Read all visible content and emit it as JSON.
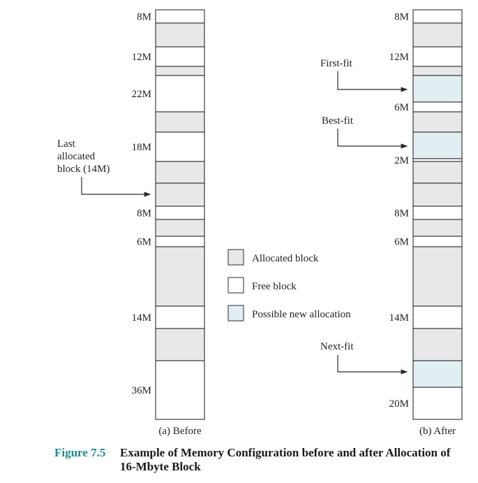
{
  "colors": {
    "allocated": "#e8e8ea",
    "free": "#ffffff",
    "possible": "#e1eef2",
    "border": "#2a2a2a",
    "caption_accent": "#1f8a8a"
  },
  "before": {
    "label": "(a) Before",
    "blocks": [
      {
        "type": "free",
        "size": "8M"
      },
      {
        "type": "allocated"
      },
      {
        "type": "free",
        "size": "12M"
      },
      {
        "type": "allocated"
      },
      {
        "type": "free",
        "size": "22M"
      },
      {
        "type": "allocated"
      },
      {
        "type": "free",
        "size": "18M"
      },
      {
        "type": "allocated"
      },
      {
        "type": "allocated"
      },
      {
        "type": "free",
        "size": "8M"
      },
      {
        "type": "allocated"
      },
      {
        "type": "free",
        "size": "6M"
      },
      {
        "type": "allocated"
      },
      {
        "type": "free",
        "size": "14M"
      },
      {
        "type": "allocated"
      },
      {
        "type": "free",
        "size": "36M"
      }
    ],
    "annotation": {
      "lines": [
        "Last",
        "allocated",
        "block (14M)"
      ]
    }
  },
  "after": {
    "label": "(b) After",
    "blocks": [
      {
        "type": "free",
        "size": "8M"
      },
      {
        "type": "allocated"
      },
      {
        "type": "free",
        "size": "12M"
      },
      {
        "type": "allocated"
      },
      {
        "type": "possible"
      },
      {
        "type": "free",
        "size": "6M"
      },
      {
        "type": "allocated"
      },
      {
        "type": "possible"
      },
      {
        "type": "free",
        "size": "2M"
      },
      {
        "type": "allocated"
      },
      {
        "type": "allocated"
      },
      {
        "type": "free",
        "size": "8M"
      },
      {
        "type": "allocated"
      },
      {
        "type": "free",
        "size": "6M"
      },
      {
        "type": "allocated"
      },
      {
        "type": "free",
        "size": "14M"
      },
      {
        "type": "allocated"
      },
      {
        "type": "possible"
      },
      {
        "type": "free",
        "size": "20M"
      }
    ],
    "annotations": [
      {
        "label": "First-fit"
      },
      {
        "label": "Best-fit"
      },
      {
        "label": "Next-fit"
      }
    ]
  },
  "legend": [
    {
      "type": "allocated",
      "label": "Allocated block"
    },
    {
      "type": "free",
      "label": "Free block"
    },
    {
      "type": "possible",
      "label": "Possible new allocation"
    }
  ],
  "caption": {
    "number": "Figure 7.5",
    "text": "Example of Memory Configuration before and after Allocation of 16-Mbyte Block"
  }
}
